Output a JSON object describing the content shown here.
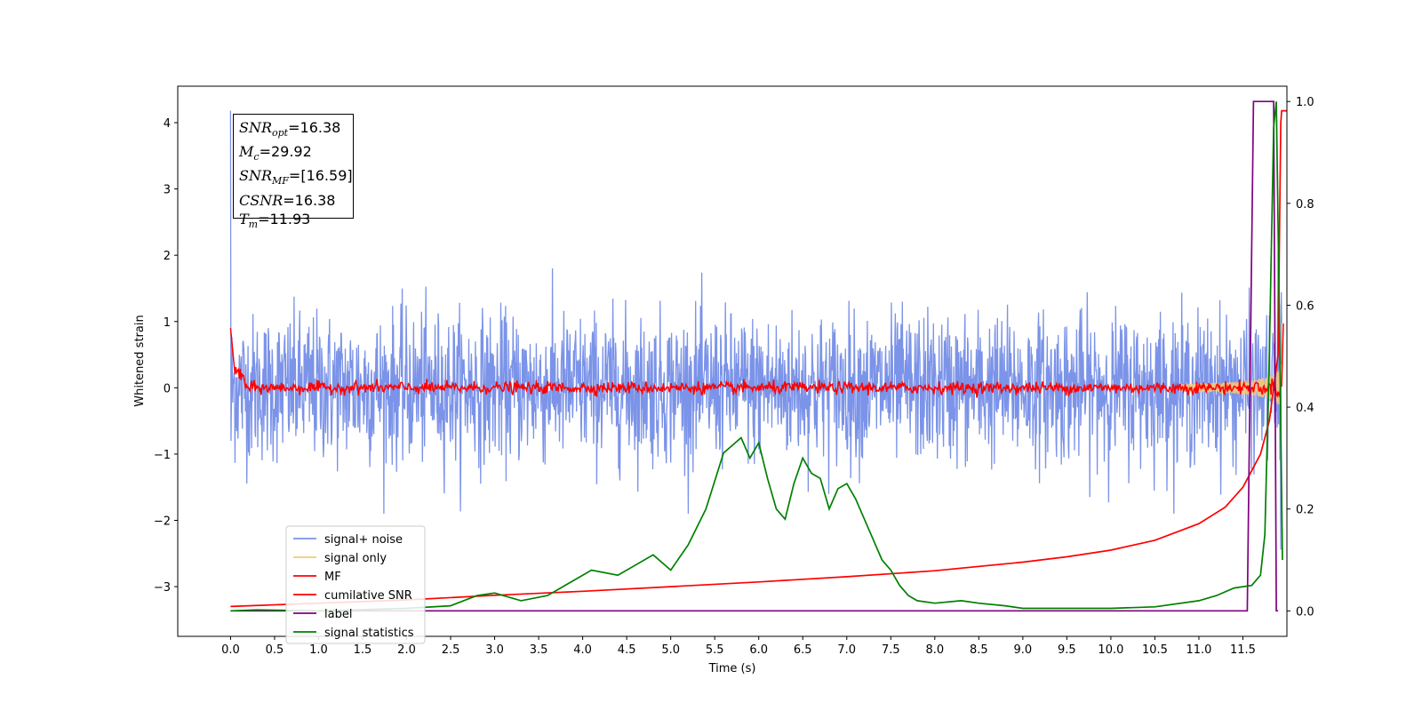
{
  "chart_data": {
    "type": "line",
    "xlabel": "Time (s)",
    "ylabel": "Whitened strain",
    "x_ticks": [
      "0.0",
      "0.5",
      "1.0",
      "1.5",
      "2.0",
      "2.5",
      "3.0",
      "3.5",
      "4.0",
      "4.5",
      "5.0",
      "5.5",
      "6.0",
      "6.5",
      "7.0",
      "7.5",
      "8.0",
      "8.5",
      "9.0",
      "9.5",
      "10.0",
      "10.5",
      "11.0",
      "11.5"
    ],
    "y_left_ticks": [
      "−3",
      "−2",
      "−1",
      "0",
      "1",
      "2",
      "3",
      "4"
    ],
    "y_right_ticks": [
      "0.0",
      "0.2",
      "0.4",
      "0.6",
      "0.8",
      "1.0"
    ],
    "xlim": [
      -0.6,
      12.0
    ],
    "ylim_left": [
      -3.75,
      4.55
    ],
    "ylim_right": [
      -0.05,
      1.03
    ],
    "legend_position": "lower-left",
    "annotation": {
      "lines": [
        {
          "sym": "SNR",
          "sub": "opt",
          "val": "=16.38"
        },
        {
          "sym": "M",
          "sub": "c",
          "val": "=29.92"
        },
        {
          "sym": "SNR",
          "sub": "MF",
          "val": "=[16.59]"
        },
        {
          "sym": "CSNR",
          "sub": "",
          "val": "=16.38"
        },
        {
          "sym": "T",
          "sub": "m",
          "val": "=11.93"
        }
      ]
    },
    "series": [
      {
        "name": "signal+ noise",
        "color": "#7b93e8",
        "axis": "left",
        "description_range": [
          -1.9,
          2.3
        ]
      },
      {
        "name": "signal only",
        "color": "#f5c97a",
        "axis": "left"
      },
      {
        "name": "MF",
        "color": "#ff0000",
        "axis": "left"
      },
      {
        "name": "cumilative SNR",
        "color": "#ff0000",
        "axis": "left",
        "x": [
          0.0,
          1.0,
          2.0,
          3.0,
          4.0,
          5.0,
          6.0,
          7.0,
          8.0,
          9.0,
          9.5,
          10.0,
          10.5,
          11.0,
          11.3,
          11.5,
          11.7,
          11.8,
          11.9,
          11.93,
          11.94,
          12.0
        ],
        "y": [
          -3.3,
          -3.25,
          -3.2,
          -3.13,
          -3.07,
          -3.0,
          -2.93,
          -2.85,
          -2.76,
          -2.63,
          -2.55,
          -2.45,
          -2.3,
          -2.05,
          -1.8,
          -1.5,
          -1.0,
          -0.5,
          0.5,
          4.0,
          4.18,
          4.18
        ]
      },
      {
        "name": "label",
        "color": "#800080",
        "axis": "right",
        "x": [
          0.0,
          11.55,
          11.62,
          11.85,
          11.88,
          11.9
        ],
        "y": [
          0.0,
          0.0,
          1.0,
          1.0,
          0.0,
          0.0
        ]
      },
      {
        "name": "signal statistics",
        "color": "#008000",
        "axis": "right",
        "x": [
          0.0,
          0.3,
          1.0,
          2.0,
          2.5,
          2.8,
          3.0,
          3.3,
          3.6,
          3.9,
          4.1,
          4.4,
          4.6,
          4.8,
          5.0,
          5.2,
          5.4,
          5.6,
          5.8,
          5.9,
          6.0,
          6.1,
          6.2,
          6.3,
          6.4,
          6.5,
          6.6,
          6.7,
          6.8,
          6.9,
          7.0,
          7.1,
          7.2,
          7.3,
          7.4,
          7.5,
          7.6,
          7.7,
          7.8,
          8.0,
          8.3,
          8.5,
          8.8,
          9.0,
          9.5,
          10.0,
          10.5,
          11.0,
          11.2,
          11.4,
          11.6,
          11.7,
          11.75,
          11.8,
          11.85,
          11.88,
          11.92,
          11.95
        ],
        "y": [
          0.0,
          0.002,
          0.0,
          0.005,
          0.01,
          0.03,
          0.035,
          0.02,
          0.03,
          0.06,
          0.08,
          0.07,
          0.09,
          0.11,
          0.08,
          0.13,
          0.2,
          0.31,
          0.34,
          0.3,
          0.33,
          0.26,
          0.2,
          0.18,
          0.25,
          0.3,
          0.27,
          0.26,
          0.2,
          0.24,
          0.25,
          0.22,
          0.18,
          0.14,
          0.1,
          0.08,
          0.05,
          0.03,
          0.02,
          0.015,
          0.02,
          0.015,
          0.01,
          0.005,
          0.005,
          0.005,
          0.008,
          0.02,
          0.03,
          0.045,
          0.05,
          0.07,
          0.15,
          0.5,
          0.95,
          1.0,
          0.5,
          0.1
        ]
      }
    ]
  }
}
